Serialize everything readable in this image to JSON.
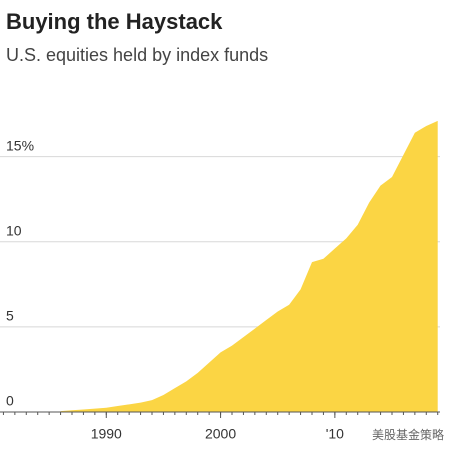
{
  "chart_data": {
    "type": "area",
    "title": "Buying the Haystack",
    "subtitle": "U.S. equities held by index funds",
    "watermark": "美股基金策略",
    "x": [
      1986,
      1987,
      1988,
      1989,
      1990,
      1991,
      1992,
      1993,
      1994,
      1995,
      1996,
      1997,
      1998,
      1999,
      2000,
      2001,
      2002,
      2003,
      2004,
      2005,
      2006,
      2007,
      2008,
      2009,
      2010,
      2011,
      2012,
      2013,
      2014,
      2015,
      2016,
      2017,
      2018,
      2019
    ],
    "values": [
      0.05,
      0.1,
      0.15,
      0.2,
      0.25,
      0.35,
      0.45,
      0.55,
      0.7,
      1.0,
      1.4,
      1.8,
      2.3,
      2.9,
      3.5,
      3.9,
      4.4,
      4.9,
      5.4,
      5.9,
      6.3,
      7.2,
      8.8,
      9.0,
      9.6,
      10.2,
      11.0,
      12.3,
      13.3,
      13.8,
      15.1,
      16.4,
      16.8,
      17.1
    ],
    "color": "#fbd544",
    "xlim": [
      1980.7,
      2019.2
    ],
    "xticks": [
      1990,
      2000,
      {
        "value": 2010,
        "label": "'10"
      }
    ],
    "ylim": [
      0,
      18.5
    ],
    "yticks": [
      0,
      5,
      10,
      {
        "value": 15,
        "label": "15%"
      }
    ],
    "grid": true
  }
}
